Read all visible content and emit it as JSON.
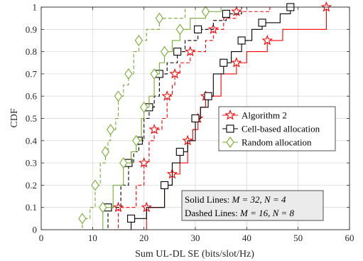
{
  "chart_data": {
    "type": "line",
    "xlabel": "Sum UL-DL SE (bits/slot/Hz)",
    "ylabel": "CDF",
    "xlim": [
      0,
      60
    ],
    "ylim": [
      0,
      1
    ],
    "xticks": [
      0,
      10,
      20,
      30,
      40,
      50,
      60
    ],
    "yticks": [
      0,
      0.1,
      0.2,
      0.3,
      0.4,
      0.5,
      0.6,
      0.7,
      0.8,
      0.9,
      1
    ],
    "xtick_labels": [
      "0",
      "10",
      "20",
      "30",
      "40",
      "50",
      "60"
    ],
    "ytick_labels": [
      "0",
      "0.1",
      "0.2",
      "0.3",
      "0.4",
      "0.5",
      "0.6",
      "0.7",
      "0.8",
      "0.9",
      "1"
    ],
    "grid": true,
    "legend_position": "center-right",
    "legend": [
      {
        "label": "Algorithm 2",
        "color": "#ff0000",
        "marker": "star"
      },
      {
        "label": "Cell-based allocation",
        "color": "#000000",
        "marker": "square"
      },
      {
        "label": "Random allocation",
        "color": "#77ac30",
        "marker": "diamond"
      }
    ],
    "annotation": {
      "solid_prefix": "Solid Lines: ",
      "solid_math": "M = 32, N = 4",
      "dashed_prefix": "Dashed Lines: ",
      "dashed_math": "M = 16, N = 8"
    },
    "series": [
      {
        "group": "Algorithm 2",
        "style": "solid",
        "color": "#ff0000",
        "marker": "star",
        "x": [
          16.0,
          20.5,
          24.0,
          25.5,
          27.0,
          28.5,
          29.5,
          30.5,
          31.0,
          32.0,
          35.0,
          38.0,
          40.0,
          44.0,
          47.0,
          55.5
        ],
        "y": [
          0.0,
          0.1,
          0.2,
          0.25,
          0.3,
          0.4,
          0.45,
          0.5,
          0.55,
          0.6,
          0.7,
          0.75,
          0.8,
          0.85,
          0.9,
          1.0
        ]
      },
      {
        "group": "Algorithm 2",
        "style": "dashed",
        "color": "#ff0000",
        "marker": "star",
        "x": [
          12.0,
          15.0,
          18.5,
          20.0,
          21.0,
          22.0,
          23.5,
          24.5,
          25.5,
          26.0,
          27.0,
          29.0,
          32.0,
          33.5,
          35.5,
          38.0,
          44.5
        ],
        "y": [
          0.0,
          0.1,
          0.2,
          0.3,
          0.4,
          0.45,
          0.5,
          0.6,
          0.65,
          0.7,
          0.75,
          0.8,
          0.85,
          0.9,
          0.95,
          0.98,
          1.0
        ]
      },
      {
        "group": "Cell-based allocation",
        "style": "solid",
        "color": "#000000",
        "marker": "square",
        "x": [
          14.0,
          17.5,
          20.5,
          24.0,
          25.5,
          27.0,
          28.5,
          30.0,
          31.0,
          32.5,
          33.5,
          35.5,
          37.0,
          39.0,
          41.0,
          43.0,
          46.5,
          48.5
        ],
        "y": [
          0.0,
          0.05,
          0.1,
          0.2,
          0.3,
          0.35,
          0.4,
          0.5,
          0.55,
          0.6,
          0.7,
          0.75,
          0.8,
          0.85,
          0.9,
          0.93,
          0.97,
          1.0
        ]
      },
      {
        "group": "Cell-based allocation",
        "style": "dashed",
        "color": "#000000",
        "marker": "square",
        "x": [
          10.0,
          13.0,
          15.5,
          17.0,
          18.0,
          19.0,
          20.0,
          21.0,
          22.0,
          23.0,
          24.5,
          26.5,
          28.0,
          30.5,
          33.5,
          36.0,
          39.0
        ],
        "y": [
          0.0,
          0.1,
          0.2,
          0.3,
          0.35,
          0.4,
          0.5,
          0.55,
          0.6,
          0.7,
          0.75,
          0.8,
          0.85,
          0.9,
          0.94,
          0.97,
          1.0
        ]
      },
      {
        "group": "Random allocation",
        "style": "solid",
        "color": "#77ac30",
        "marker": "diamond",
        "x": [
          8.0,
          12.0,
          14.0,
          16.0,
          17.5,
          18.5,
          19.5,
          20.0,
          21.0,
          22.0,
          23.0,
          24.0,
          25.5,
          27.0,
          29.0,
          32.0,
          35.0
        ],
        "y": [
          0.0,
          0.1,
          0.2,
          0.3,
          0.35,
          0.4,
          0.5,
          0.55,
          0.6,
          0.7,
          0.75,
          0.8,
          0.85,
          0.9,
          0.95,
          0.98,
          1.0
        ]
      },
      {
        "group": "Random allocation",
        "style": "dashed",
        "color": "#77ac30",
        "marker": "diamond",
        "x": [
          5.0,
          8.0,
          9.5,
          10.5,
          11.5,
          12.5,
          13.0,
          13.5,
          14.5,
          15.0,
          16.0,
          17.0,
          18.0,
          19.0,
          20.5,
          23.0,
          28.0
        ],
        "y": [
          0.0,
          0.05,
          0.1,
          0.2,
          0.3,
          0.35,
          0.4,
          0.45,
          0.5,
          0.6,
          0.65,
          0.7,
          0.8,
          0.85,
          0.9,
          0.95,
          1.0
        ]
      }
    ]
  }
}
